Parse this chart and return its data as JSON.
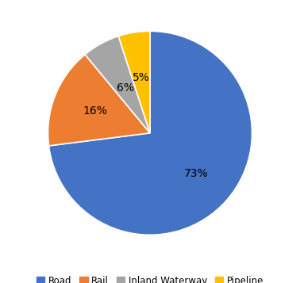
{
  "labels": [
    "Road",
    "Rail",
    "Inland Waterway",
    "Pipeline"
  ],
  "values": [
    73,
    16,
    6,
    5
  ],
  "colors": [
    "#4472C4",
    "#ED7D31",
    "#A5A5A5",
    "#FFC000"
  ],
  "pct_labels": [
    "73%",
    "16%",
    "6%",
    "5%"
  ],
  "legend_labels": [
    "Road",
    "Rail",
    "Inland Waterway",
    "Pipeline"
  ],
  "startangle": 90,
  "background_color": "#FFFFFF",
  "label_fontsize": 10,
  "legend_fontsize": 8.5,
  "label_radii": [
    0.6,
    0.58,
    0.5,
    0.55
  ]
}
